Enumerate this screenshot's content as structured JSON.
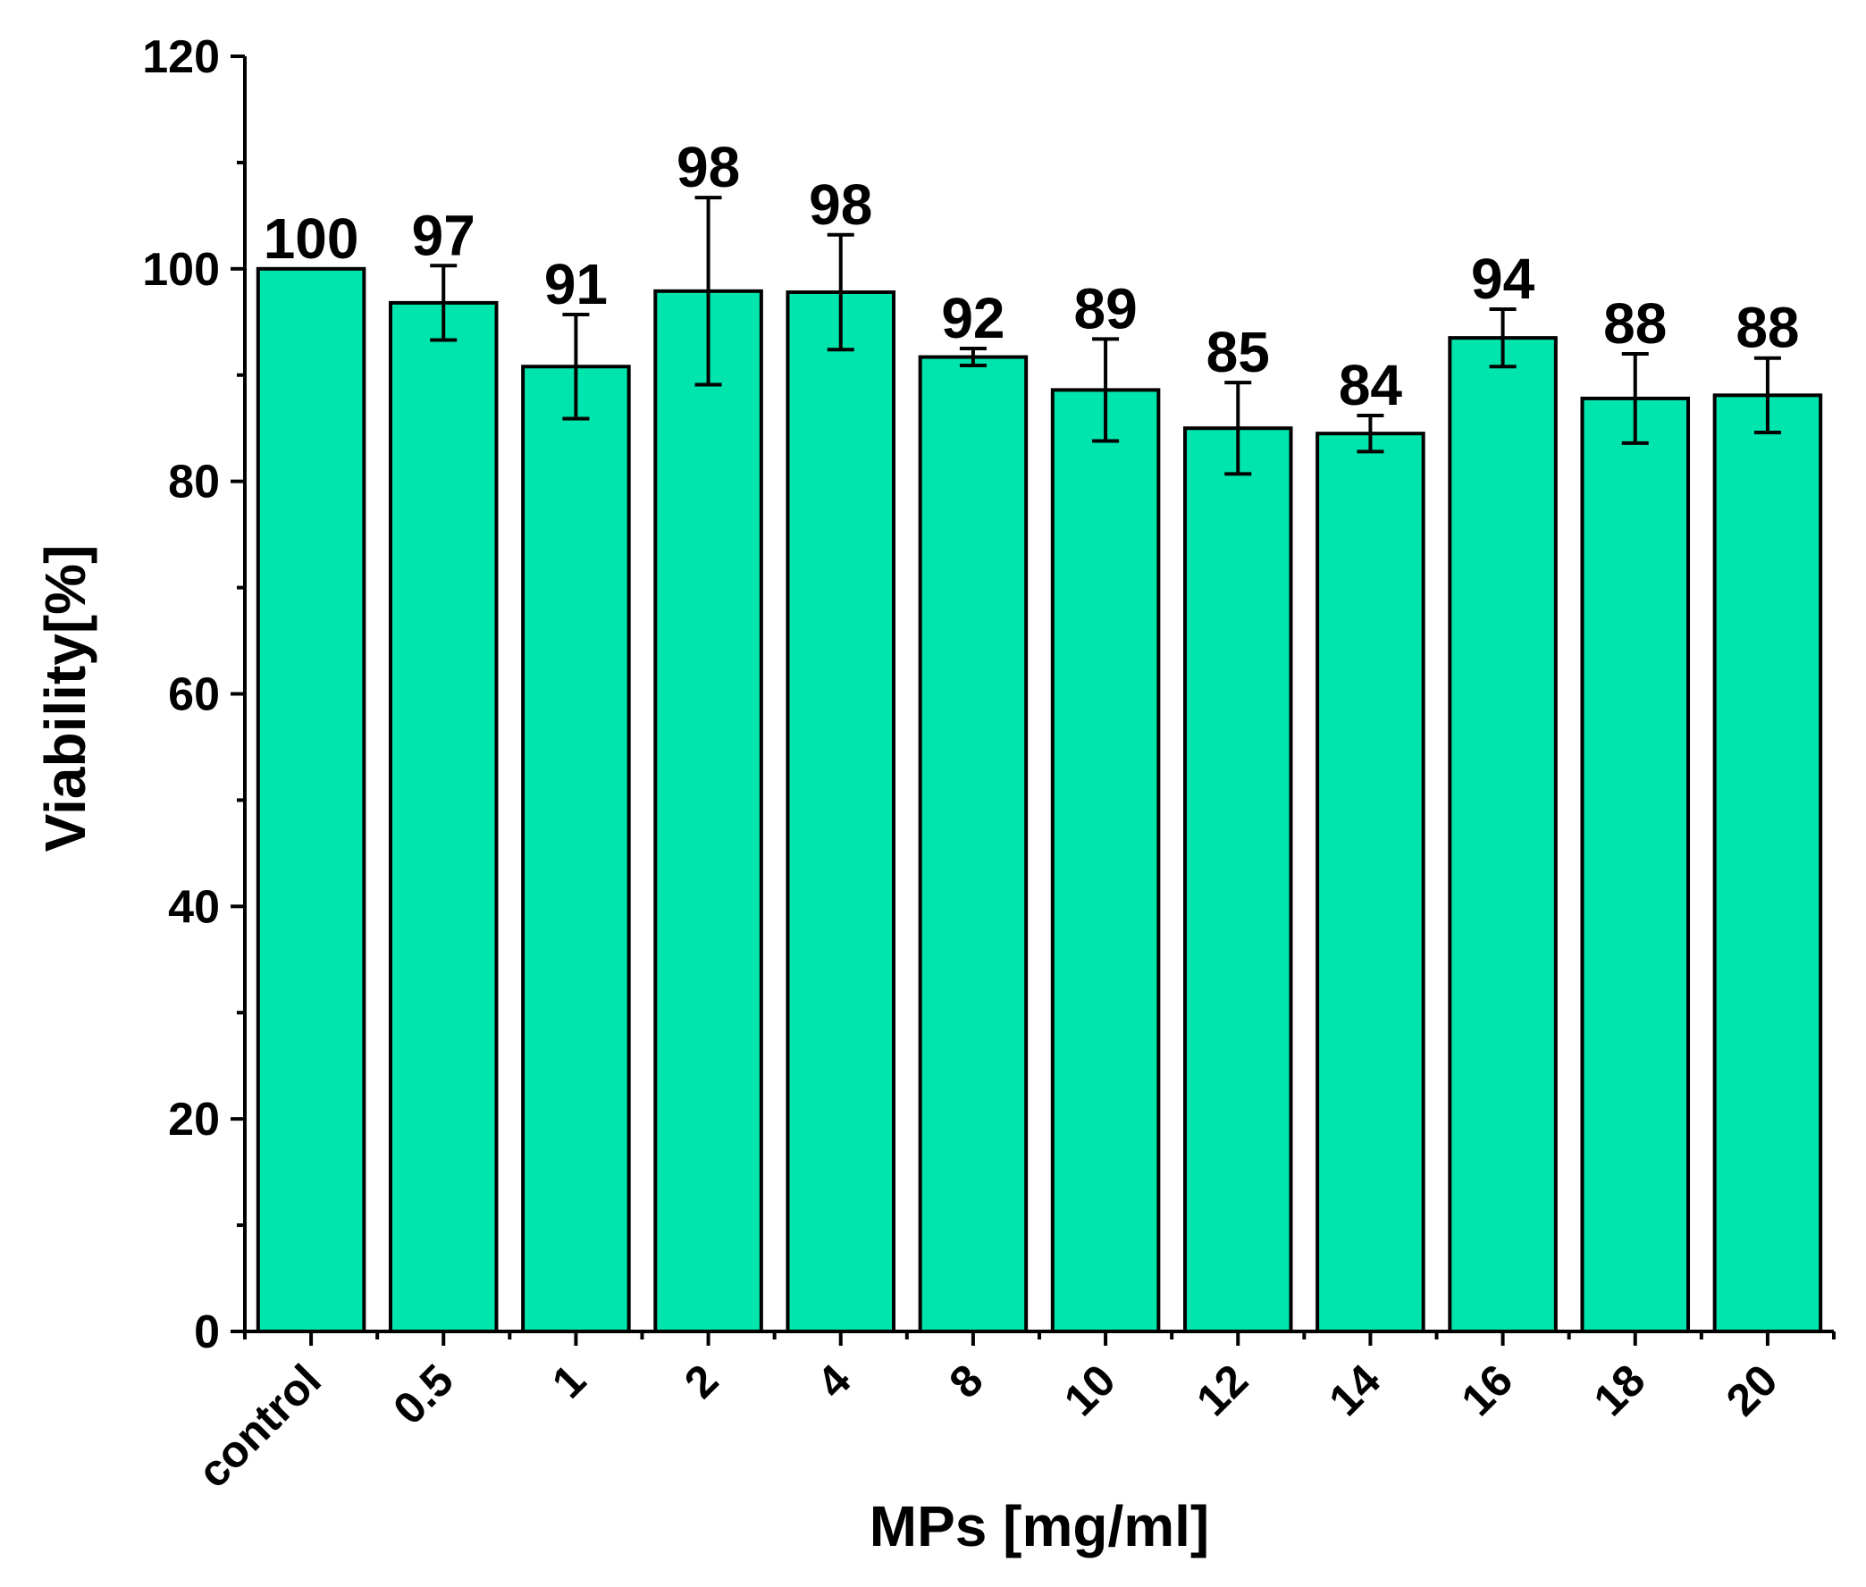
{
  "chart_data": {
    "type": "bar",
    "title": "",
    "xlabel": "MPs [mg/ml]",
    "ylabel": "Viability[%]",
    "ylim": [
      0,
      120
    ],
    "yticks": [
      0,
      20,
      40,
      60,
      80,
      100,
      120
    ],
    "y_minor_step": 10,
    "grid": false,
    "bar_color": "#00E5AD",
    "edge_color": "#000000",
    "categories": [
      "control",
      "0.5",
      "1",
      "2",
      "4",
      "8",
      "10",
      "12",
      "14",
      "16",
      "18",
      "20"
    ],
    "values": [
      100,
      96.8,
      90.8,
      97.9,
      97.8,
      91.7,
      88.6,
      85.0,
      84.5,
      93.5,
      87.8,
      88.1
    ],
    "errors": [
      0,
      3.5,
      4.9,
      8.8,
      5.4,
      0.8,
      4.8,
      4.3,
      1.7,
      2.7,
      4.2,
      3.5
    ],
    "value_labels": [
      "100",
      "97",
      "91",
      "98",
      "98",
      "92",
      "89",
      "85",
      "84",
      "94",
      "88",
      "88"
    ]
  }
}
